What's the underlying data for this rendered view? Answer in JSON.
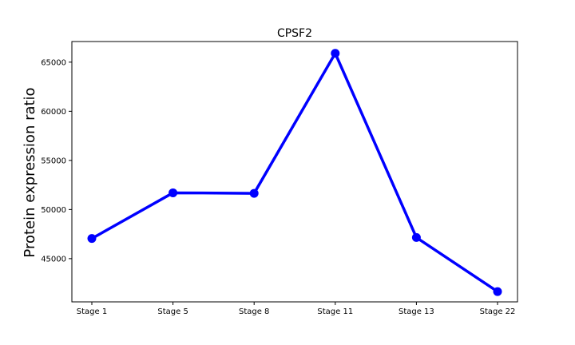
{
  "chart_data": {
    "type": "line",
    "title": "CPSF2",
    "xlabel": "",
    "ylabel": "Protein expression ratio",
    "categories": [
      "Stage 1",
      "Stage 5",
      "Stage 8",
      "Stage 11",
      "Stage 13",
      "Stage 22"
    ],
    "series": [
      {
        "values": [
          47050,
          51700,
          51650,
          65900,
          47150,
          41650
        ]
      }
    ],
    "ylim": [
      40600,
      67100
    ],
    "yticks": [
      45000,
      50000,
      55000,
      60000,
      65000
    ],
    "grid": false,
    "line_color": "#0000ff",
    "marker": "circle"
  }
}
